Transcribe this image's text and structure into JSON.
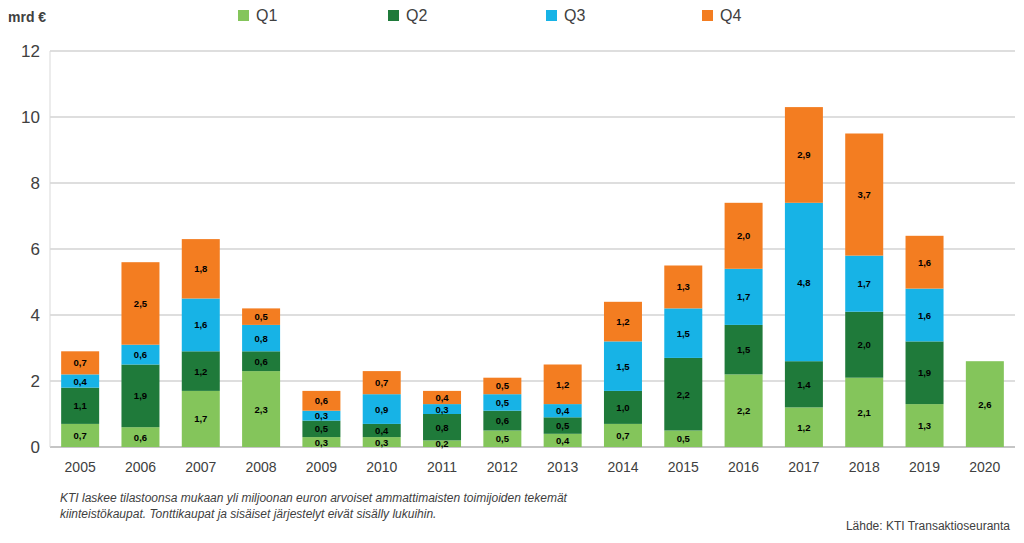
{
  "chart_data": {
    "type": "bar",
    "stacked": true,
    "data_labels": true,
    "grid": true,
    "legend": "top",
    "y_label": "mrd €",
    "categories": [
      "2005",
      "2006",
      "2007",
      "2008",
      "2009",
      "2010",
      "2011",
      "2012",
      "2013",
      "2014",
      "2015",
      "2016",
      "2017",
      "2018",
      "2019",
      "2020"
    ],
    "ylim": [
      0,
      12
    ],
    "yticks": [
      0,
      2,
      4,
      6,
      8,
      10,
      12
    ],
    "series": [
      {
        "name": "Q1",
        "color": "#84c55b",
        "values": [
          0.7,
          0.6,
          1.7,
          2.3,
          0.3,
          0.3,
          0.2,
          0.5,
          0.4,
          0.7,
          0.5,
          2.2,
          1.2,
          2.1,
          1.3,
          2.6
        ],
        "value_labels": [
          "0,7",
          "0,6",
          "1,7",
          "2,3",
          "0,3",
          "0,3",
          "0,2",
          "0,5",
          "0,4",
          "0,7",
          "0,5",
          "2,2",
          "1,2",
          "2,1",
          "1,3",
          "2,6"
        ]
      },
      {
        "name": "Q2",
        "color": "#1f7a3a",
        "values": [
          1.1,
          1.9,
          1.2,
          0.6,
          0.5,
          0.4,
          0.8,
          0.6,
          0.5,
          1.0,
          2.2,
          1.5,
          1.4,
          2.0,
          1.9,
          null
        ],
        "value_labels": [
          "1,1",
          "1,9",
          "1,2",
          "0,6",
          "0,5",
          "0,4",
          "0,8",
          "0,6",
          "0,5",
          "1,0",
          "2,2",
          "1,5",
          "1,4",
          "2,0",
          "1,9",
          null
        ]
      },
      {
        "name": "Q3",
        "color": "#17b3e6",
        "values": [
          0.4,
          0.6,
          1.6,
          0.8,
          0.3,
          0.9,
          0.3,
          0.5,
          0.4,
          1.5,
          1.5,
          1.7,
          4.8,
          1.7,
          1.6,
          null
        ],
        "value_labels": [
          "0,4",
          "0,6",
          "1,6",
          "0,8",
          "0,3",
          "0,9",
          "0,3",
          "0,5",
          "0,4",
          "1,5",
          "1,5",
          "1,7",
          "4,8",
          "1,7",
          "1,6",
          null
        ]
      },
      {
        "name": "Q4",
        "color": "#f37d21",
        "values": [
          0.7,
          2.5,
          1.8,
          0.5,
          0.6,
          0.7,
          0.4,
          0.5,
          1.2,
          1.2,
          1.3,
          2.0,
          2.9,
          3.7,
          1.6,
          null
        ],
        "value_labels": [
          "0,7",
          "2,5",
          "1,8",
          "0,5",
          "0,6",
          "0,7",
          "0,4",
          "0,5",
          "1,2",
          "1,2",
          "1,3",
          "2,0",
          "2,9",
          "3,7",
          "1,6",
          null
        ]
      }
    ],
    "note": [
      "KTI laskee tilastoonsa mukaan yli miljoonan euron arvoiset ammattimaisten toimijoiden tekemät",
      "kiinteistökaupat. Tonttikaupat ja sisäiset järjestelyt eivät sisälly lukuihin."
    ],
    "source": "Lähde: KTI Transaktioseuranta"
  }
}
